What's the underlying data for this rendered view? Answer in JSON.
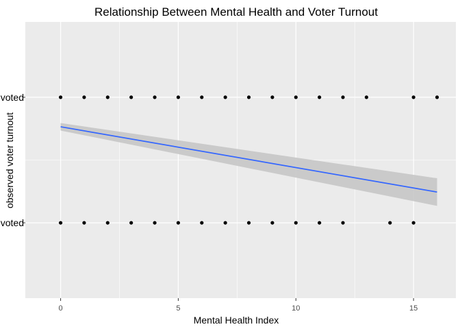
{
  "chart_data": {
    "type": "scatter",
    "title": "Relationship Between Mental Health and Voter Turnout",
    "xlabel": "Mental Health Index",
    "ylabel": "observed voter turnout",
    "xlim": [
      -1.5,
      16.8
    ],
    "ylim": [
      -0.6,
      1.6
    ],
    "x_ticks": [
      0,
      5,
      10,
      15
    ],
    "x_tick_labels": [
      "0",
      "5",
      "10",
      "15"
    ],
    "y_ticks": [
      0,
      1
    ],
    "y_tick_labels": [
      "not voted",
      "voted"
    ],
    "grid": true,
    "series": [
      {
        "kind": "points",
        "y": 1,
        "x": [
          0,
          1,
          2,
          3,
          4,
          5,
          6,
          7,
          8,
          9,
          10,
          11,
          12,
          13,
          15,
          16
        ]
      },
      {
        "kind": "points",
        "y": 0,
        "x": [
          0,
          1,
          2,
          3,
          4,
          5,
          6,
          7,
          8,
          9,
          10,
          11,
          12,
          14,
          15
        ]
      },
      {
        "kind": "fit-line",
        "x": [
          0,
          16
        ],
        "y": [
          0.765,
          0.245
        ],
        "ci_lower": [
          0.735,
          0.135
        ],
        "ci_upper": [
          0.795,
          0.355
        ]
      }
    ],
    "colors": {
      "panel": "#ebebeb",
      "grid": "#ffffff",
      "points": "#000000",
      "fit_line": "#3366ff",
      "ribbon": "#c6c6c6"
    }
  }
}
